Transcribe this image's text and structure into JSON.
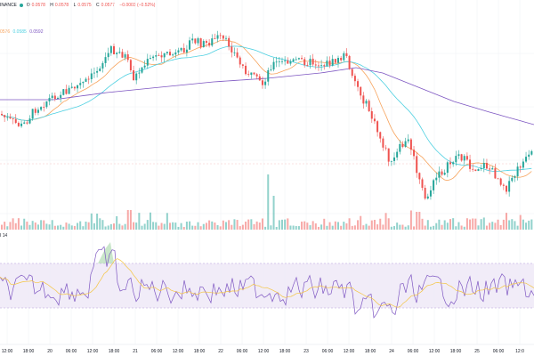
{
  "header": {
    "exchange": "INANCE",
    "status_color": "#26a69a",
    "ohlc": {
      "o_label": "O",
      "o_value": "0.0578",
      "h_label": "H",
      "h_value": "0.0578",
      "l_label": "L",
      "l_value": "0.0575",
      "c_label": "C",
      "c_value": "0.0577",
      "change": "−0.0003 (−0.52%)"
    }
  },
  "ma_legend": {
    "v1": "0576",
    "v2": "0.0585",
    "v3": "0.0592"
  },
  "rsi_legend": {
    "label": "I 14",
    "v1": "",
    "v2": ""
  },
  "colors": {
    "up": "#26a69a",
    "down": "#ef5350",
    "ma_fast": "#f7a35c",
    "ma_mid": "#4dd0e1",
    "ma_slow": "#7e57c2",
    "rsi_line": "#7e57c2",
    "rsi_ma": "#f4c542",
    "rsi_band": "#ede7f6",
    "grid": "#eef0f3",
    "text": "#131722",
    "change_text": "#ef5350"
  },
  "xaxis": {
    "ticks": [
      "12:00",
      "18:00",
      "20",
      "06:00",
      "12:00",
      "18:00",
      "21",
      "06:00",
      "12:00",
      "18:00",
      "22",
      "06:00",
      "12:00",
      "18:00",
      "23",
      "06:00",
      "12:00",
      "18:00",
      "24",
      "06:00",
      "12:00",
      "18:00",
      "25",
      "06:00",
      "12:0"
    ]
  },
  "chart_data": {
    "type": "candlestick",
    "price_series_seed": 1,
    "y_description": "price",
    "rsi": {
      "overbought": 70,
      "oversold": 30
    }
  }
}
